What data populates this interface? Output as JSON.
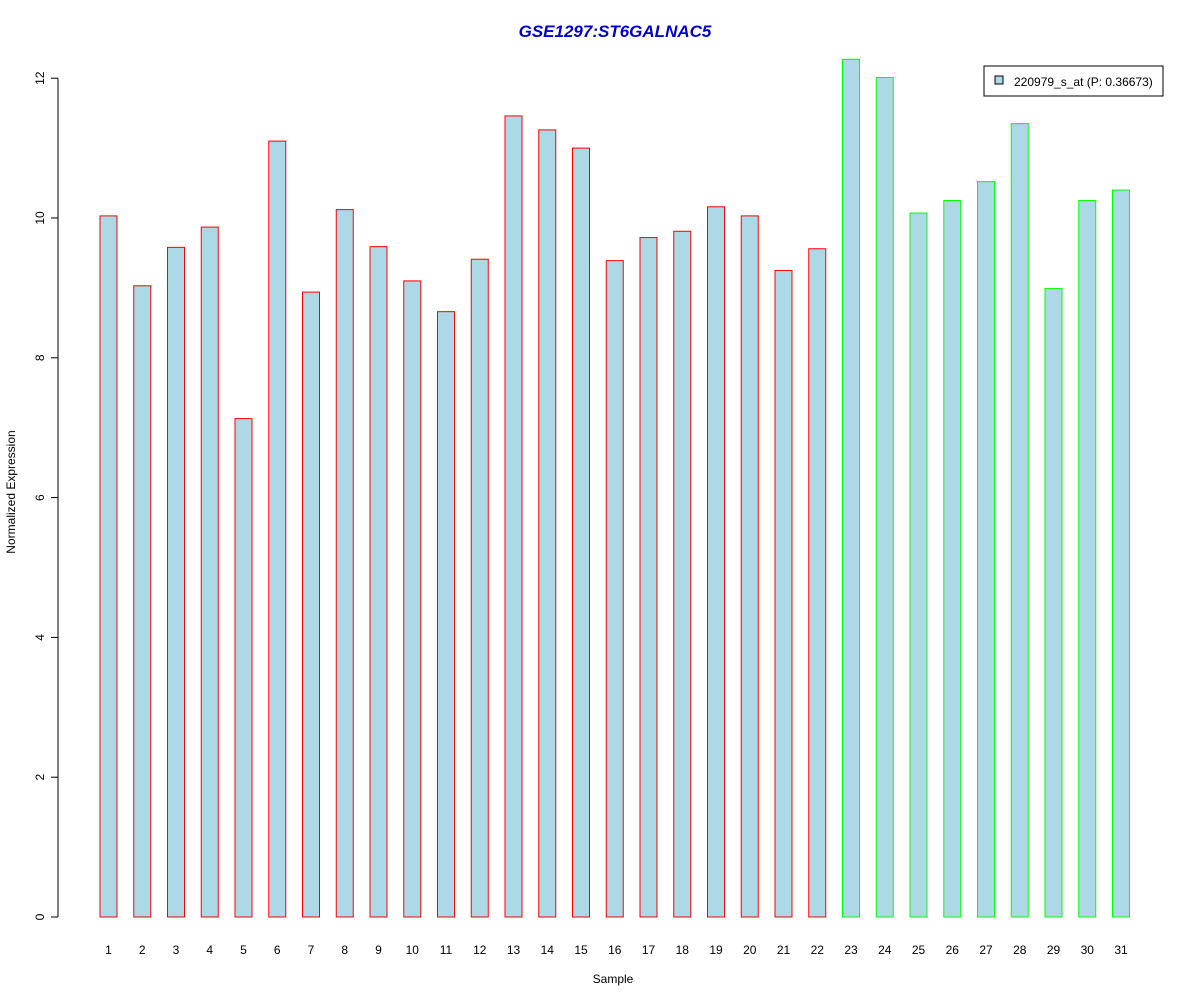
{
  "chart_data": {
    "type": "bar",
    "title": "GSE1297:ST6GALNAC5",
    "xlabel": "Sample",
    "ylabel": "Normalized Expression",
    "ylim": [
      0,
      12.3
    ],
    "yticks": [
      0,
      2,
      4,
      6,
      8,
      10,
      12
    ],
    "grid": false,
    "legend_position": "top-right",
    "categories": [
      "1",
      "2",
      "3",
      "4",
      "5",
      "6",
      "7",
      "8",
      "9",
      "10",
      "11",
      "12",
      "13",
      "14",
      "15",
      "16",
      "17",
      "18",
      "19",
      "20",
      "21",
      "22",
      "23",
      "24",
      "25",
      "26",
      "27",
      "28",
      "29",
      "30",
      "31"
    ],
    "series": [
      {
        "name": "220979_s_at (P: 0.36673)",
        "fill": "#add8e6",
        "values": [
          10.03,
          9.03,
          9.58,
          9.87,
          7.13,
          11.1,
          8.94,
          10.12,
          9.59,
          9.1,
          8.66,
          9.41,
          11.46,
          11.26,
          11.0,
          9.39,
          9.72,
          9.81,
          10.16,
          10.03,
          9.25,
          9.56,
          12.27,
          12.01,
          10.07,
          10.25,
          10.52,
          11.35,
          8.99,
          10.25,
          10.4
        ]
      }
    ],
    "groups": [
      {
        "border": "#ff0000",
        "samples": [
          "1",
          "2",
          "3",
          "4",
          "5",
          "6",
          "7",
          "8",
          "9",
          "10",
          "11",
          "12",
          "13",
          "14",
          "15",
          "16",
          "17",
          "18",
          "19",
          "20",
          "21",
          "22"
        ]
      },
      {
        "border": "#00ff00",
        "samples": [
          "23",
          "24",
          "25",
          "26",
          "27",
          "28",
          "29",
          "30",
          "31"
        ]
      }
    ],
    "colors": {
      "title": "#0000cc",
      "axis": "#000000"
    }
  }
}
